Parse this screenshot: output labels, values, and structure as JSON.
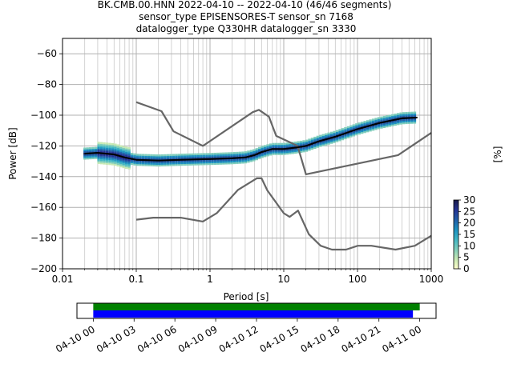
{
  "title_lines": [
    "BK.CMB.00.HNN   2022-04-10 -- 2022-04-10  (46/46 segments)",
    "sensor_type EPISENSORES-T sensor_sn 7168",
    "datalogger_type Q330HR datalogger_sn 3330"
  ],
  "chart_data": [
    {
      "type": "line",
      "title": "BK.CMB.00.HNN   2022-04-10 -- 2022-04-10  (46/46 segments)",
      "xlabel": "Period [s]",
      "ylabel": "Power [dB]",
      "xscale": "log",
      "xlim": [
        0.01,
        1000
      ],
      "ylim": [
        -200,
        -50
      ],
      "x_ticks": [
        "0.01",
        "0.1",
        "1",
        "10",
        "100",
        "1000"
      ],
      "y_ticks": [
        "−200",
        "−180",
        "−160",
        "−140",
        "−120",
        "−100",
        "−80",
        "−60"
      ],
      "grid": true,
      "series": [
        {
          "role": "noise-model-high",
          "x": [
            0.1,
            0.22,
            0.32,
            0.8,
            3.8,
            4.6,
            6.3,
            7.9,
            15.4,
            20,
            354.8,
            1000
          ],
          "y": [
            -91.5,
            -97.4,
            -110.5,
            -120,
            -98,
            -96.5,
            -101,
            -113.5,
            -120,
            -138.5,
            -126,
            -111.5
          ]
        },
        {
          "role": "noise-model-low",
          "x": [
            0.1,
            0.17,
            0.4,
            0.8,
            1.24,
            2.4,
            4.3,
            5,
            6,
            10,
            12,
            15.6,
            21.9,
            31.6,
            45,
            70,
            101,
            154,
            328,
            600,
            1000
          ],
          "y": [
            -168,
            -166.7,
            -166.7,
            -169.2,
            -163.7,
            -148.6,
            -141.1,
            -141.1,
            -149.0,
            -163.8,
            -166.2,
            -162.1,
            -177.5,
            -185.0,
            -187.5,
            -187.5,
            -185.0,
            -185.0,
            -187.5,
            -185.0,
            -178.5
          ]
        },
        {
          "role": "mode",
          "x": [
            0.02,
            0.03,
            0.05,
            0.07,
            0.1,
            0.2,
            0.4,
            1,
            2,
            3,
            4,
            5,
            7,
            10,
            15,
            20,
            30,
            50,
            100,
            200,
            400,
            650
          ],
          "y": [
            -125,
            -124.5,
            -125.5,
            -127.5,
            -129,
            -129.5,
            -129,
            -128.5,
            -128,
            -127.5,
            -126,
            -124,
            -122,
            -122,
            -121,
            -120,
            -117,
            -114,
            -109,
            -105,
            -102,
            -101.5
          ]
        }
      ],
      "colorbar": {
        "label": "[%]",
        "ticks": [
          "0",
          "5",
          "10",
          "15",
          "20",
          "25",
          "30"
        ],
        "range": [
          0,
          30
        ],
        "colors": [
          "#ffffcc",
          "#c7e9b4",
          "#7fcdbb",
          "#41b6c4",
          "#1d91c0",
          "#225ea8",
          "#253494",
          "#1a1a4a"
        ]
      }
    },
    {
      "type": "timeline",
      "tick_labels": [
        "04-10 00",
        "04-10 03",
        "04-10 06",
        "04-10 09",
        "04-10 12",
        "04-10 15",
        "04-10 18",
        "04-10 21",
        "04-11 00"
      ],
      "tick_hours": [
        0,
        3,
        6,
        9,
        12,
        15,
        18,
        21,
        24
      ],
      "range_hours": [
        -1.2,
        25.2
      ],
      "bars": [
        {
          "color": "#008000",
          "start_hour": 0,
          "end_hour": 24.0
        },
        {
          "color": "#0000ff",
          "start_hour": 0,
          "end_hour": 23.5
        }
      ]
    }
  ]
}
